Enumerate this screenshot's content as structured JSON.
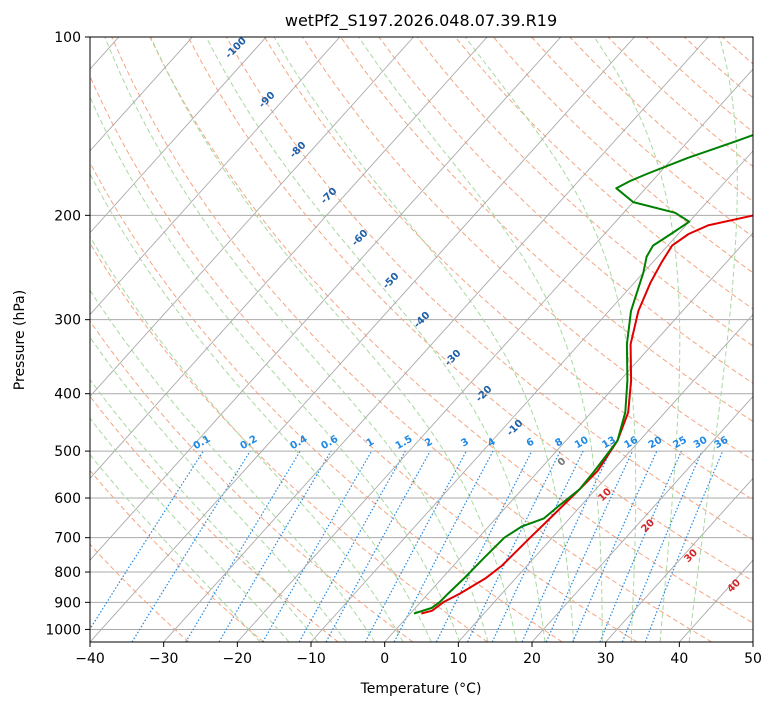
{
  "chart_data": {
    "type": "line",
    "subtype": "skew-T log-P diagram",
    "title": "wetPf2_S197.2026.048.07.39.R19",
    "xlabel": "Temperature (°C)",
    "ylabel": "Pressure (hPa)",
    "xlim": [
      -40,
      50
    ],
    "ylim": [
      1050,
      100
    ],
    "x_ticks": [
      -40,
      -30,
      -20,
      -10,
      0,
      10,
      20,
      30,
      40,
      50
    ],
    "y_ticks": [
      100,
      200,
      300,
      400,
      500,
      600,
      700,
      800,
      900,
      1000
    ],
    "grid": true,
    "colors": {
      "temperature": "#e00000",
      "dewpoint": "#008000",
      "isotherm": "#aaaaaa",
      "dry_adiabat": "#f4a582",
      "moist_adiabat": "#a8d8a0",
      "mixing_ratio": "#1e88e5",
      "label_isotherm": "#1f5fa8",
      "label_mixing_ratio": "#1e88e5",
      "label_positive": "#d62728",
      "label_zero": "#777777"
    },
    "series": [
      {
        "name": "Temperature",
        "pressure": [
          940,
          930,
          900,
          870,
          820,
          780,
          700,
          640,
          580,
          540,
          480,
          430,
          380,
          330,
          290,
          260,
          240,
          225,
          215,
          208,
          200,
          190,
          180,
          170,
          160,
          150,
          140,
          130,
          120,
          110,
          100
        ],
        "values": [
          1.5,
          2.6,
          3.1,
          4.3,
          5.9,
          6.6,
          7.0,
          7.4,
          7.8,
          8.0,
          7.0,
          5.0,
          1.5,
          -3.0,
          -6.0,
          -7.8,
          -8.8,
          -9.4,
          -8.6,
          -7.0,
          -2.0,
          4.0,
          8.5,
          9.0,
          11.0,
          15.0,
          18.0,
          21.0,
          22.0,
          24.5,
          24.5
        ]
      },
      {
        "name": "Dewpoint",
        "pressure": [
          940,
          920,
          900,
          870,
          820,
          760,
          700,
          670,
          650,
          620,
          580,
          540,
          480,
          430,
          380,
          330,
          290,
          250,
          235,
          225,
          215,
          205,
          198,
          190,
          180,
          175,
          170,
          160,
          150,
          140,
          130,
          120,
          110,
          100
        ],
        "values": [
          0.5,
          2.2,
          2.6,
          2.7,
          3.0,
          3.2,
          3.5,
          4.5,
          6.5,
          7.0,
          7.8,
          7.6,
          7.0,
          4.6,
          1.0,
          -3.5,
          -7.0,
          -10.0,
          -11.5,
          -12.0,
          -11.0,
          -10.0,
          -13.0,
          -20.0,
          -24.0,
          -23.0,
          -21.5,
          -18.0,
          -13.5,
          -9.0,
          -4.5,
          -1.0,
          2.0,
          5.5
        ]
      }
    ],
    "isotherm_labels": [
      -100,
      -90,
      -80,
      -70,
      -60,
      -50,
      -40,
      -30,
      -20,
      -10,
      0,
      10,
      20,
      30,
      40
    ],
    "mixing_ratio_labels": [
      "0.1",
      "0.2",
      "0.4",
      "0.6",
      "1",
      "1.5",
      "2",
      "3",
      "4",
      "6",
      "8",
      "10",
      "13",
      "16",
      "20",
      "25",
      "30",
      "36"
    ]
  }
}
